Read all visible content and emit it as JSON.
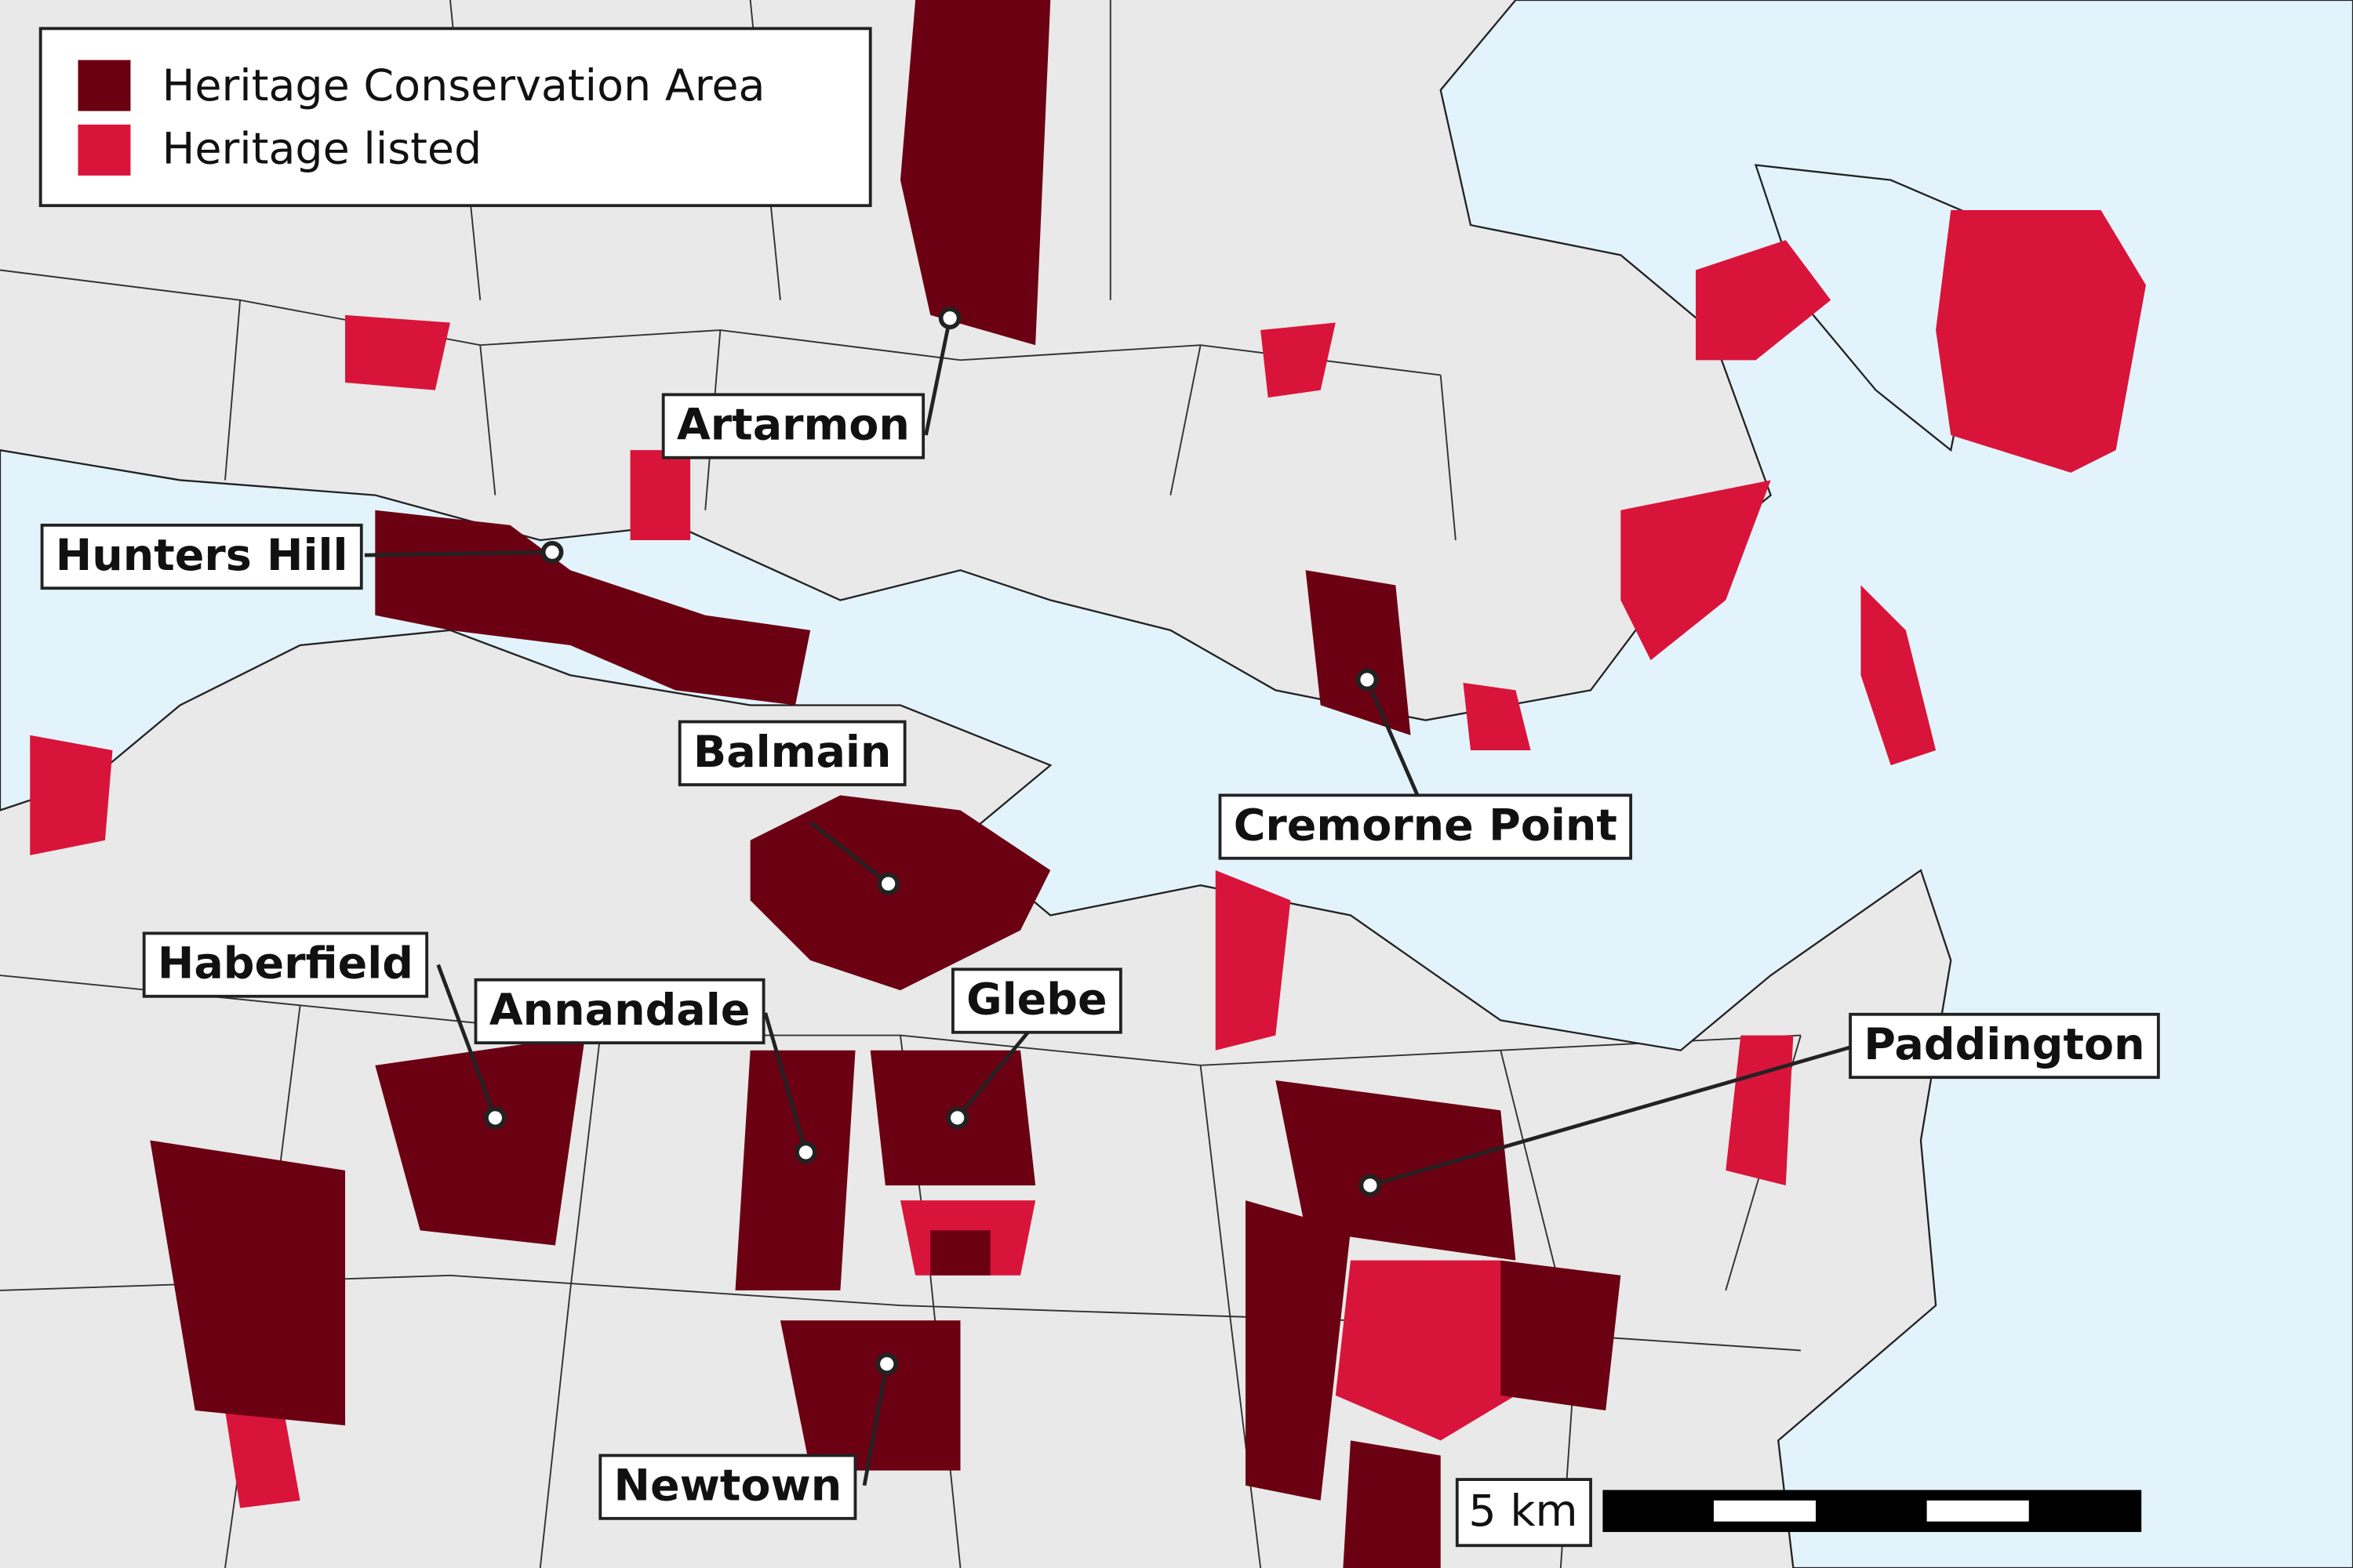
{
  "legend": {
    "items": [
      {
        "label": "Heritage Conservation Area"
      },
      {
        "label": "Heritage listed"
      }
    ]
  },
  "places": [
    {
      "label": "Artarmon"
    },
    {
      "label": "Hunters Hill"
    },
    {
      "label": "Balmain"
    },
    {
      "label": "Cremorne Point"
    },
    {
      "label": "Haberfield"
    },
    {
      "label": "Annandale"
    },
    {
      "label": "Glebe"
    },
    {
      "label": "Paddington"
    },
    {
      "label": "Newtown"
    }
  ],
  "scale_bar": {
    "label": "5 km"
  }
}
